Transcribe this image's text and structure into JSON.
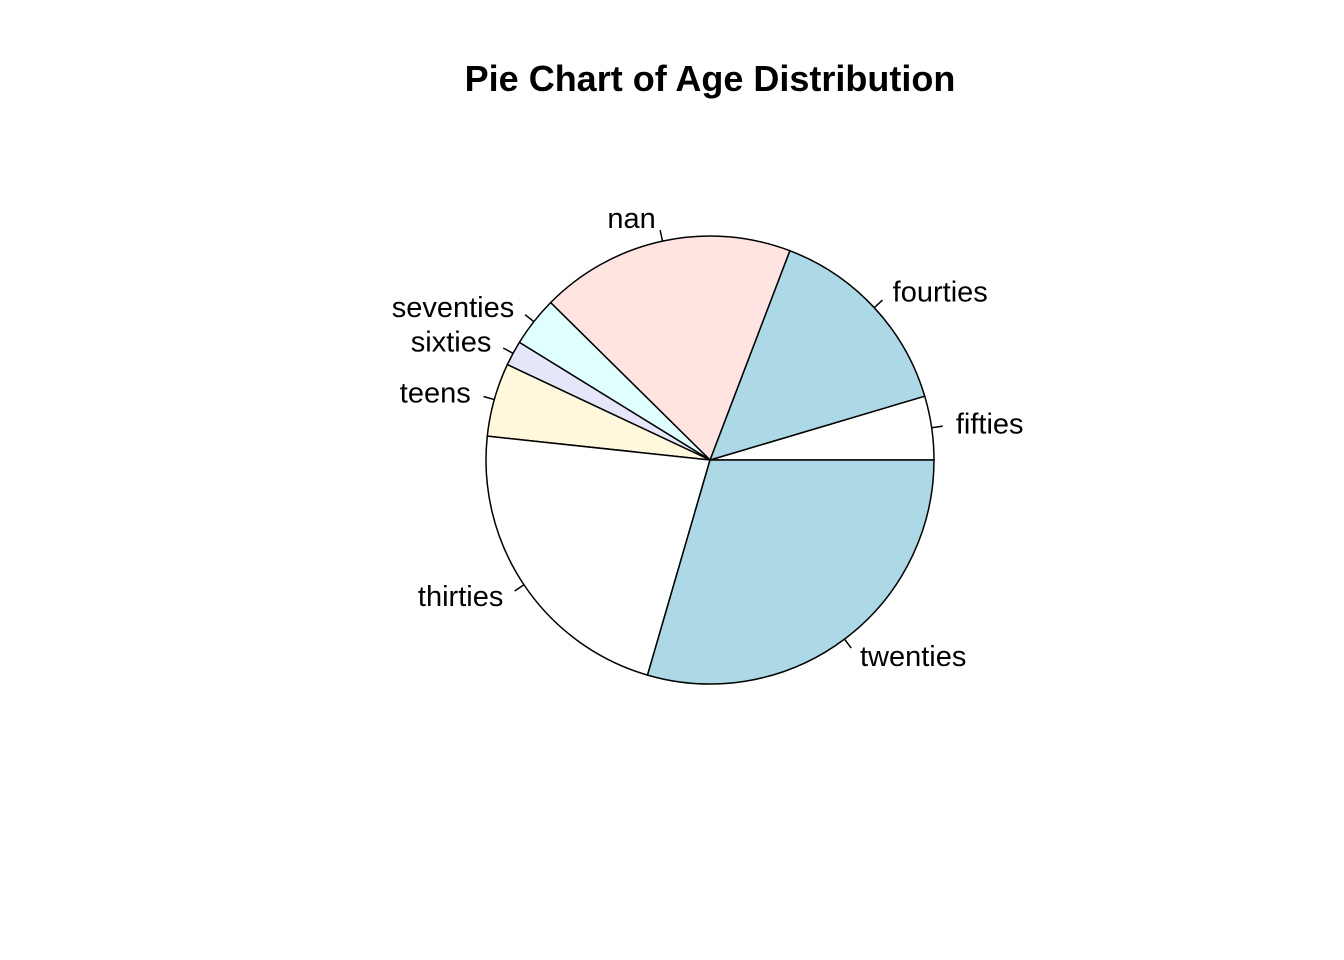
{
  "chart_data": {
    "type": "pie",
    "title": "Pie Chart of Age Distribution",
    "direction": "counterclockwise",
    "start": "3 o'clock",
    "slices": [
      {
        "label": "fifties",
        "value": 4.6,
        "color": "#ffffff"
      },
      {
        "label": "fourties",
        "value": 14.6,
        "color": "#add8e6"
      },
      {
        "label": "nan",
        "value": 18.4,
        "color": "#ffe4e1"
      },
      {
        "label": "seventies",
        "value": 3.6,
        "color": "#e0ffff"
      },
      {
        "label": "sixties",
        "value": 1.8,
        "color": "#e6e6fa"
      },
      {
        "label": "teens",
        "value": 5.3,
        "color": "#fff8dc"
      },
      {
        "label": "thirties",
        "value": 22.2,
        "color": "#ffffff"
      },
      {
        "label": "twenties",
        "value": 29.5,
        "color": "#add8e6"
      }
    ]
  }
}
